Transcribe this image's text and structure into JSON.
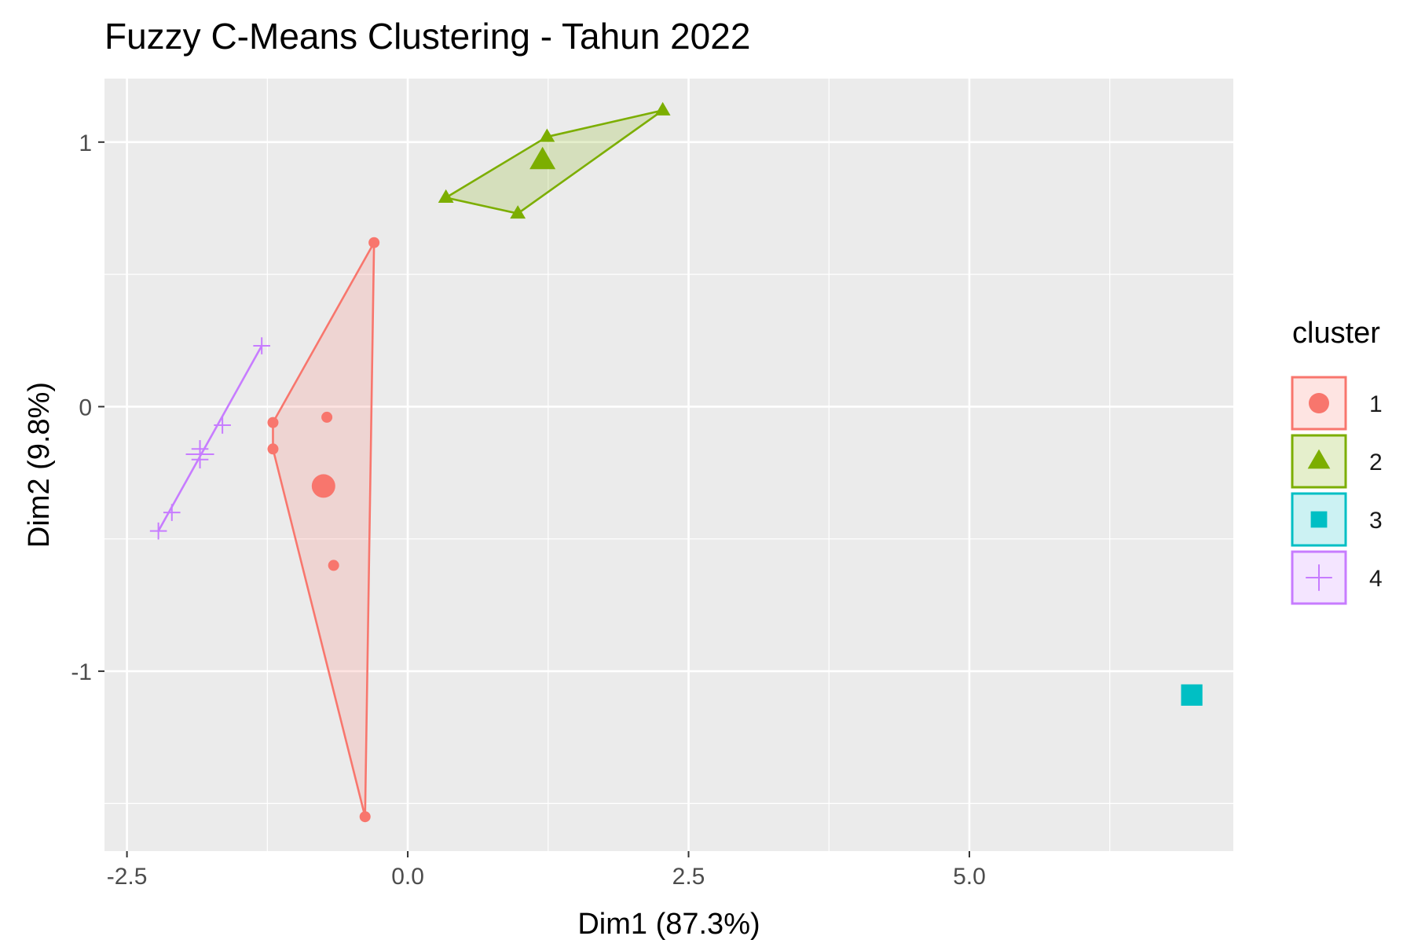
{
  "chart_data": {
    "type": "scatter",
    "title": "Fuzzy C-Means Clustering - Tahun 2022",
    "xlabel": "Dim1 (87.3%)",
    "ylabel": "Dim2 (9.8%)",
    "xlim": [
      -2.7,
      7.35
    ],
    "ylim": [
      -1.68,
      1.24
    ],
    "xticks": [
      -2.5,
      0.0,
      2.5,
      5.0
    ],
    "xtick_labels": [
      "-2.5",
      "0.0",
      "2.5",
      "5.0"
    ],
    "yticks": [
      1,
      0,
      -1
    ],
    "ytick_labels": [
      "1",
      "0",
      "-1"
    ],
    "grid": true,
    "legend": {
      "title": "cluster",
      "position": "right",
      "entries": [
        "1",
        "2",
        "3",
        "4"
      ]
    },
    "series": [
      {
        "name": "1",
        "color": "#F8766D",
        "shape": "circle",
        "points": [
          [
            -0.3,
            0.62
          ],
          [
            -1.2,
            -0.06
          ],
          [
            -1.2,
            -0.16
          ],
          [
            -0.72,
            -0.04
          ],
          [
            -0.66,
            -0.6
          ],
          [
            -0.38,
            -1.55
          ]
        ],
        "hull": [
          [
            -0.3,
            0.62
          ],
          [
            -1.2,
            -0.06
          ],
          [
            -1.2,
            -0.16
          ],
          [
            -0.38,
            -1.55
          ]
        ],
        "center": [
          -0.75,
          -0.3
        ]
      },
      {
        "name": "2",
        "color": "#7CAE00",
        "shape": "triangle",
        "points": [
          [
            2.27,
            1.12
          ],
          [
            1.24,
            1.02
          ],
          [
            0.34,
            0.79
          ],
          [
            0.98,
            0.73
          ]
        ],
        "hull": [
          [
            2.27,
            1.12
          ],
          [
            1.24,
            1.02
          ],
          [
            0.34,
            0.79
          ],
          [
            0.98,
            0.73
          ]
        ],
        "center": [
          1.2,
          0.93
        ]
      },
      {
        "name": "3",
        "color": "#00BFC4",
        "shape": "square",
        "points": [
          [
            6.98,
            -1.09
          ]
        ],
        "hull": [],
        "center": [
          6.98,
          -1.09
        ]
      },
      {
        "name": "4",
        "color": "#C77CFF",
        "shape": "plus",
        "points": [
          [
            -1.3,
            0.23
          ],
          [
            -1.65,
            -0.07
          ],
          [
            -1.85,
            -0.16
          ],
          [
            -1.85,
            -0.2
          ],
          [
            -2.1,
            -0.4
          ],
          [
            -2.22,
            -0.47
          ]
        ],
        "hull": [
          [
            -1.3,
            0.23
          ],
          [
            -2.22,
            -0.47
          ]
        ],
        "center": [
          -1.85,
          -0.18
        ]
      }
    ]
  }
}
